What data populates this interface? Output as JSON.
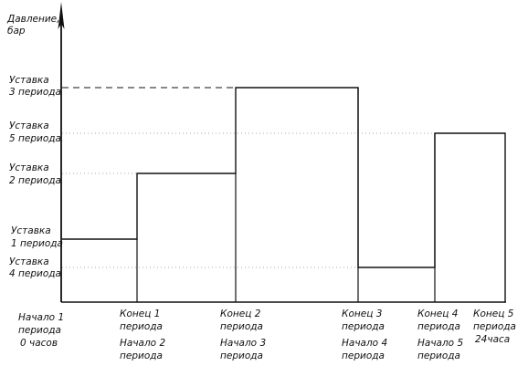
{
  "axis_label": [
    "Давление,",
    "бар"
  ],
  "setpoints": [
    {
      "id": "p3",
      "lines": [
        "Уставка",
        "3 периода"
      ]
    },
    {
      "id": "p5",
      "lines": [
        "Уставка",
        "5 периода"
      ]
    },
    {
      "id": "p2",
      "lines": [
        "Уставка",
        "2 периода"
      ]
    },
    {
      "id": "p1",
      "lines": [
        "Уставка",
        "1 периода"
      ]
    },
    {
      "id": "p4",
      "lines": [
        "Уставка",
        "4 периода"
      ]
    }
  ],
  "time_labels": [
    {
      "id": "t0",
      "lines": [
        "Начало 1",
        "периода",
        "0 часов"
      ]
    },
    {
      "id": "t1",
      "lines": [
        "Конец 1",
        "периода",
        "Начало 2",
        "периода"
      ]
    },
    {
      "id": "t2",
      "lines": [
        "Конец 2",
        "периода",
        "Начало 3",
        "периода"
      ]
    },
    {
      "id": "t3",
      "lines": [
        "Конец 3",
        "периода",
        "Начало 4",
        "периода"
      ]
    },
    {
      "id": "t4",
      "lines": [
        "Конец 4",
        "периода",
        "Начало 5",
        "периода"
      ]
    },
    {
      "id": "t5",
      "lines": [
        "Конец 5",
        "периода",
        "24часа"
      ]
    }
  ]
}
